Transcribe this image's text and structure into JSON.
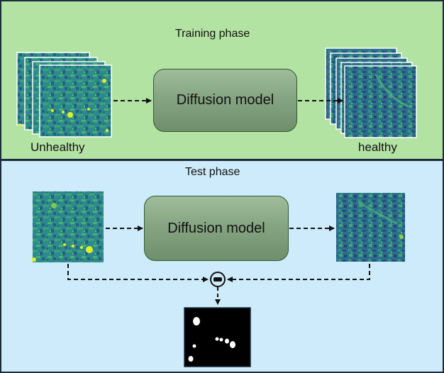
{
  "training": {
    "title": "Training phase",
    "input_label": "Unhealthy",
    "model_label": "Diffusion model",
    "output_label": "healthy"
  },
  "test": {
    "title": "Test phase",
    "model_label": "Diffusion model"
  },
  "colors": {
    "training_bg": "#b3e3a3",
    "test_bg": "#cdebfa",
    "model_box": "#86a582",
    "image_base": "#2a8a8e",
    "lesion": "#e0ef2c",
    "mask_bg": "#000000"
  }
}
